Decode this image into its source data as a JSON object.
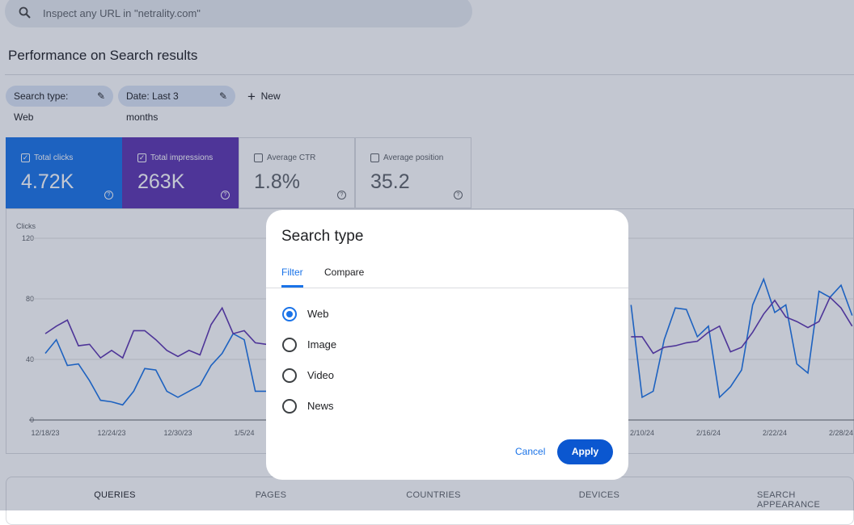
{
  "search_bar": {
    "placeholder": "Inspect any URL in \"netrality.com\""
  },
  "page_title": "Performance on Search results",
  "filters": [
    "Search type: Web",
    "Date: Last 3 months",
    "New"
  ],
  "metrics": [
    {
      "label": "Total clicks",
      "value": "4.72K",
      "checked": true,
      "color": "#1a73e8"
    },
    {
      "label": "Total impressions",
      "value": "263K",
      "checked": true,
      "color": "#5e35b1"
    },
    {
      "label": "Average CTR",
      "value": "1.8%",
      "checked": false,
      "color": "#ffffff"
    },
    {
      "label": "Average position",
      "value": "35.2",
      "checked": false,
      "color": "#ffffff"
    }
  ],
  "chart_data": {
    "type": "line",
    "y_axis_label": "Clicks",
    "categories": [
      "12/18/23",
      null,
      null,
      null,
      null,
      null,
      "12/24/23",
      null,
      null,
      null,
      null,
      null,
      "12/30/23",
      null,
      null,
      null,
      null,
      null,
      "1/5/24",
      null,
      null,
      null,
      null,
      null,
      null,
      null,
      null,
      null,
      null,
      null,
      null,
      null,
      null,
      null,
      null,
      null,
      null,
      null,
      null,
      null,
      null,
      null,
      null,
      null,
      null,
      null,
      null,
      null,
      null,
      null,
      null,
      null,
      null,
      null,
      "2/10/24",
      null,
      null,
      null,
      null,
      null,
      "2/16/24",
      null,
      null,
      null,
      null,
      null,
      "2/22/24",
      null,
      null,
      null,
      null,
      null,
      "2/28/24",
      null
    ],
    "series": [
      {
        "color": "#1a73e8",
        "values": [
          44,
          53,
          36,
          37,
          26,
          13,
          12,
          10,
          19,
          34,
          33,
          19,
          15,
          19,
          23,
          36,
          44,
          57,
          53,
          19,
          19,
          null,
          null,
          null,
          null,
          null,
          null,
          null,
          null,
          null,
          null,
          null,
          null,
          null,
          null,
          null,
          null,
          null,
          null,
          null,
          null,
          null,
          null,
          null,
          null,
          null,
          null,
          null,
          null,
          null,
          null,
          null,
          null,
          76,
          15,
          19,
          53,
          74,
          73,
          55,
          62,
          15,
          22,
          33,
          76,
          93,
          71,
          76,
          37,
          31,
          85,
          81,
          89,
          69
        ]
      },
      {
        "color": "#5e35b1",
        "values": [
          57,
          62,
          66,
          49,
          50,
          41,
          46,
          41,
          59,
          59,
          53,
          46,
          42,
          46,
          43,
          63,
          74,
          57,
          59,
          51,
          50,
          null,
          null,
          null,
          null,
          null,
          null,
          null,
          null,
          null,
          null,
          null,
          null,
          null,
          null,
          null,
          null,
          null,
          null,
          null,
          null,
          null,
          null,
          null,
          null,
          null,
          null,
          null,
          null,
          null,
          null,
          null,
          null,
          55,
          55,
          44,
          48,
          49,
          51,
          52,
          58,
          62,
          45,
          48,
          58,
          70,
          79,
          68,
          65,
          61,
          65,
          81,
          74,
          62
        ]
      }
    ],
    "ylim": [
      0,
      120
    ],
    "yticks": [
      0,
      40,
      80,
      120
    ],
    "grid": true
  },
  "tabs": [
    "QUERIES",
    "PAGES",
    "COUNTRIES",
    "DEVICES",
    "SEARCH APPEARANCE"
  ],
  "dialog": {
    "title": "Search type",
    "tabs": [
      "Filter",
      "Compare"
    ],
    "options": [
      {
        "label": "Web",
        "selected": true
      },
      {
        "label": "Image",
        "selected": false
      },
      {
        "label": "Video",
        "selected": false
      },
      {
        "label": "News",
        "selected": false
      }
    ],
    "buttons": [
      "Cancel",
      "Apply"
    ]
  }
}
